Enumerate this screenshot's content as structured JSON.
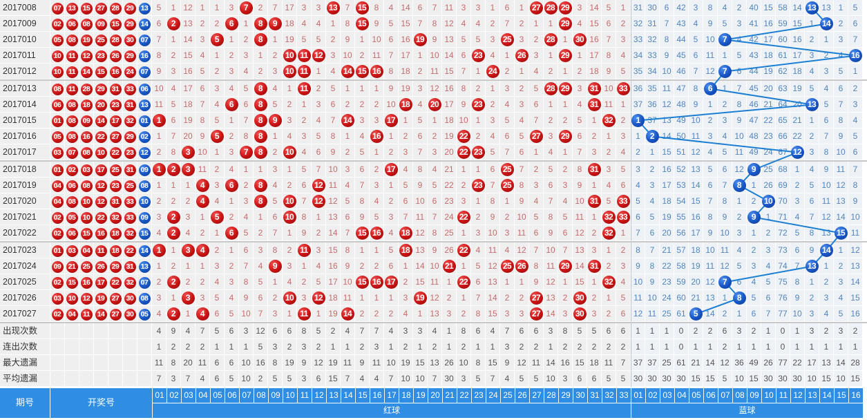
{
  "colors": {
    "red_ball": "#c81212",
    "blue_ball": "#1654c4",
    "header_bg": "#2f8de4",
    "line": "#1a7fd4",
    "red_text": "#c86a6a",
    "blue_text": "#4f86c2"
  },
  "header": {
    "period": "期号",
    "draw": "开奖号",
    "red_label": "红球",
    "blue_label": "蓝球",
    "red_cols": [
      "01",
      "02",
      "03",
      "04",
      "05",
      "06",
      "07",
      "08",
      "09",
      "10",
      "11",
      "12",
      "13",
      "14",
      "15",
      "16",
      "17",
      "18",
      "19",
      "20",
      "21",
      "22",
      "23",
      "24",
      "25",
      "26",
      "27",
      "28",
      "29",
      "30",
      "31",
      "32",
      "33"
    ],
    "blue_cols": [
      "01",
      "02",
      "03",
      "04",
      "05",
      "06",
      "07",
      "08",
      "09",
      "10",
      "11",
      "12",
      "13",
      "14",
      "15",
      "16"
    ]
  },
  "rows": [
    {
      "period": "2017008",
      "red": [
        "07",
        "13",
        "15",
        "27",
        "28",
        "29"
      ],
      "blue": "13",
      "red_cells": [
        5,
        1,
        12,
        1,
        1,
        3,
        7,
        2,
        7,
        17,
        3,
        3,
        13,
        7,
        15,
        8,
        4,
        14,
        6,
        7,
        11,
        3,
        3,
        1,
        6,
        1,
        27,
        28,
        29,
        3,
        14,
        5,
        1
      ],
      "blue_cells": [
        31,
        30,
        6,
        42,
        3,
        8,
        4,
        2,
        40,
        15,
        58,
        14,
        13,
        13,
        1,
        5
      ]
    },
    {
      "period": "2017009",
      "red": [
        "02",
        "06",
        "08",
        "09",
        "15",
        "29"
      ],
      "blue": "14",
      "red_cells": [
        6,
        2,
        13,
        2,
        2,
        6,
        1,
        8,
        9,
        18,
        4,
        4,
        1,
        8,
        15,
        9,
        5,
        15,
        7,
        8,
        12,
        4,
        4,
        2,
        7,
        2,
        1,
        1,
        29,
        4,
        15,
        6,
        2
      ],
      "blue_cells": [
        32,
        31,
        7,
        43,
        4,
        9,
        5,
        3,
        41,
        16,
        59,
        15,
        1,
        14,
        2,
        6
      ]
    },
    {
      "period": "2017010",
      "red": [
        "05",
        "08",
        "19",
        "25",
        "28",
        "30"
      ],
      "blue": "07",
      "red_cells": [
        7,
        1,
        14,
        3,
        5,
        1,
        2,
        8,
        1,
        19,
        5,
        5,
        2,
        9,
        1,
        10,
        6,
        16,
        19,
        9,
        13,
        5,
        5,
        3,
        25,
        3,
        2,
        28,
        1,
        30,
        16,
        7,
        3
      ],
      "blue_cells": [
        33,
        32,
        8,
        44,
        5,
        10,
        7,
        4,
        42,
        17,
        60,
        16,
        2,
        1,
        3,
        7
      ]
    },
    {
      "period": "2017011",
      "red": [
        "10",
        "11",
        "12",
        "23",
        "26",
        "29"
      ],
      "blue": "16",
      "red_cells": [
        8,
        2,
        15,
        4,
        1,
        2,
        3,
        1,
        2,
        10,
        11,
        12,
        3,
        10,
        2,
        11,
        7,
        17,
        1,
        10,
        14,
        6,
        23,
        4,
        1,
        26,
        3,
        1,
        29,
        1,
        17,
        8,
        4
      ],
      "blue_cells": [
        34,
        33,
        9,
        45,
        6,
        11,
        1,
        5,
        43,
        18,
        61,
        17,
        3,
        2,
        4,
        16
      ]
    },
    {
      "period": "2017012",
      "red": [
        "10",
        "11",
        "14",
        "15",
        "16",
        "24"
      ],
      "blue": "07",
      "red_cells": [
        9,
        3,
        16,
        5,
        2,
        3,
        4,
        2,
        3,
        10,
        11,
        1,
        4,
        14,
        15,
        16,
        8,
        18,
        2,
        11,
        15,
        7,
        1,
        24,
        2,
        1,
        4,
        2,
        1,
        2,
        18,
        9,
        5
      ],
      "blue_cells": [
        35,
        34,
        10,
        46,
        7,
        12,
        7,
        6,
        44,
        19,
        62,
        18,
        4,
        3,
        5,
        1
      ]
    },
    {
      "period": "2017013",
      "red": [
        "08",
        "11",
        "28",
        "29",
        "31",
        "33"
      ],
      "blue": "06",
      "red_cells": [
        10,
        4,
        17,
        6,
        3,
        4,
        5,
        8,
        4,
        1,
        11,
        2,
        5,
        1,
        1,
        1,
        9,
        19,
        3,
        12,
        16,
        8,
        2,
        1,
        3,
        2,
        5,
        28,
        29,
        3,
        31,
        10,
        33
      ],
      "blue_cells": [
        36,
        35,
        11,
        47,
        8,
        6,
        1,
        7,
        45,
        20,
        63,
        19,
        5,
        4,
        6,
        2
      ]
    },
    {
      "period": "2017014",
      "red": [
        "06",
        "08",
        "18",
        "20",
        "23",
        "31"
      ],
      "blue": "13",
      "red_cells": [
        11,
        5,
        18,
        7,
        4,
        6,
        6,
        8,
        5,
        2,
        1,
        3,
        6,
        2,
        2,
        2,
        10,
        18,
        4,
        20,
        17,
        9,
        23,
        2,
        4,
        3,
        6,
        1,
        1,
        4,
        31,
        11,
        1
      ],
      "blue_cells": [
        37,
        36,
        12,
        48,
        9,
        1,
        2,
        8,
        46,
        21,
        64,
        20,
        13,
        5,
        7,
        3
      ]
    },
    {
      "period": "2017015",
      "red": [
        "01",
        "08",
        "09",
        "14",
        "17",
        "32"
      ],
      "blue": "01",
      "red_cells": [
        1,
        6,
        19,
        8,
        5,
        1,
        7,
        8,
        9,
        3,
        2,
        4,
        7,
        14,
        3,
        3,
        17,
        1,
        5,
        1,
        18,
        10,
        1,
        3,
        5,
        4,
        7,
        2,
        2,
        5,
        1,
        32,
        2
      ],
      "blue_cells": [
        1,
        37,
        13,
        49,
        10,
        2,
        3,
        9,
        47,
        22,
        65,
        21,
        1,
        6,
        8,
        4
      ]
    },
    {
      "period": "2017016",
      "red": [
        "05",
        "08",
        "16",
        "22",
        "27",
        "29"
      ],
      "blue": "02",
      "red_cells": [
        1,
        7,
        20,
        9,
        5,
        2,
        8,
        8,
        1,
        4,
        3,
        5,
        8,
        1,
        4,
        16,
        1,
        2,
        6,
        2,
        19,
        22,
        2,
        4,
        6,
        5,
        27,
        3,
        29,
        6,
        2,
        1,
        3
      ],
      "blue_cells": [
        1,
        2,
        14,
        50,
        11,
        3,
        4,
        10,
        48,
        23,
        66,
        22,
        2,
        7,
        9,
        5
      ]
    },
    {
      "period": "2017017",
      "red": [
        "03",
        "07",
        "08",
        "10",
        "22",
        "23"
      ],
      "blue": "12",
      "red_cells": [
        2,
        8,
        3,
        10,
        1,
        3,
        7,
        8,
        2,
        10,
        4,
        6,
        9,
        2,
        5,
        1,
        2,
        3,
        7,
        3,
        20,
        22,
        23,
        5,
        7,
        6,
        1,
        4,
        1,
        7,
        3,
        2,
        4
      ],
      "blue_cells": [
        2,
        1,
        15,
        51,
        12,
        4,
        5,
        11,
        49,
        24,
        67,
        12,
        3,
        8,
        10,
        6
      ]
    },
    {
      "period": "2017018",
      "red": [
        "01",
        "02",
        "03",
        "17",
        "25",
        "31"
      ],
      "blue": "09",
      "red_cells": [
        1,
        2,
        3,
        11,
        2,
        4,
        1,
        1,
        3,
        1,
        5,
        7,
        10,
        3,
        6,
        2,
        17,
        4,
        8,
        4,
        21,
        1,
        1,
        6,
        25,
        7,
        2,
        5,
        2,
        8,
        31,
        3,
        5
      ],
      "blue_cells": [
        3,
        2,
        16,
        52,
        13,
        5,
        6,
        12,
        9,
        25,
        68,
        1,
        4,
        9,
        11,
        7
      ]
    },
    {
      "period": "2017019",
      "red": [
        "04",
        "06",
        "08",
        "12",
        "23",
        "25"
      ],
      "blue": "08",
      "red_cells": [
        1,
        1,
        1,
        4,
        3,
        6,
        2,
        8,
        4,
        2,
        6,
        12,
        11,
        4,
        7,
        3,
        1,
        5,
        9,
        5,
        22,
        2,
        23,
        7,
        25,
        8,
        3,
        6,
        3,
        9,
        1,
        4,
        6
      ],
      "blue_cells": [
        4,
        3,
        17,
        53,
        14,
        6,
        7,
        8,
        1,
        26,
        69,
        2,
        5,
        10,
        12,
        8
      ]
    },
    {
      "period": "2017020",
      "red": [
        "04",
        "08",
        "10",
        "12",
        "31",
        "33"
      ],
      "blue": "10",
      "red_cells": [
        2,
        2,
        2,
        4,
        4,
        1,
        3,
        8,
        5,
        10,
        7,
        12,
        12,
        5,
        8,
        4,
        2,
        6,
        10,
        6,
        23,
        3,
        1,
        8,
        1,
        9,
        4,
        7,
        4,
        10,
        31,
        5,
        33
      ],
      "blue_cells": [
        5,
        4,
        18,
        54,
        15,
        7,
        8,
        1,
        2,
        10,
        70,
        3,
        6,
        11,
        13,
        9
      ]
    },
    {
      "period": "2017021",
      "red": [
        "02",
        "05",
        "10",
        "22",
        "32",
        "33"
      ],
      "blue": "09",
      "red_cells": [
        3,
        2,
        3,
        1,
        5,
        2,
        4,
        1,
        6,
        10,
        8,
        1,
        13,
        6,
        9,
        5,
        3,
        7,
        11,
        7,
        24,
        22,
        2,
        9,
        2,
        10,
        5,
        8,
        5,
        11,
        1,
        32,
        33
      ],
      "blue_cells": [
        6,
        5,
        19,
        55,
        16,
        8,
        9,
        2,
        9,
        1,
        71,
        4,
        7,
        12,
        14,
        10
      ]
    },
    {
      "period": "2017022",
      "red": [
        "02",
        "06",
        "15",
        "16",
        "18",
        "32"
      ],
      "blue": "15",
      "red_cells": [
        4,
        2,
        4,
        2,
        1,
        6,
        5,
        2,
        7,
        1,
        9,
        2,
        14,
        7,
        15,
        16,
        4,
        18,
        12,
        8,
        25,
        1,
        3,
        10,
        3,
        11,
        6,
        9,
        6,
        12,
        2,
        32,
        1
      ],
      "blue_cells": [
        7,
        6,
        20,
        56,
        17,
        9,
        10,
        3,
        1,
        2,
        72,
        5,
        8,
        13,
        15,
        11
      ]
    },
    {
      "period": "2017023",
      "red": [
        "01",
        "03",
        "04",
        "11",
        "18",
        "22"
      ],
      "blue": "14",
      "red_cells": [
        1,
        1,
        3,
        4,
        2,
        1,
        6,
        3,
        8,
        2,
        11,
        3,
        15,
        8,
        1,
        1,
        5,
        18,
        13,
        9,
        26,
        22,
        4,
        11,
        4,
        12,
        7,
        10,
        7,
        13,
        3,
        1,
        2
      ],
      "blue_cells": [
        8,
        7,
        21,
        57,
        18,
        10,
        11,
        4,
        2,
        3,
        73,
        6,
        9,
        14,
        1,
        12
      ]
    },
    {
      "period": "2017024",
      "red": [
        "09",
        "21",
        "25",
        "26",
        "29",
        "31"
      ],
      "blue": "13",
      "red_cells": [
        1,
        2,
        1,
        1,
        3,
        2,
        7,
        4,
        9,
        3,
        1,
        4,
        16,
        9,
        2,
        2,
        6,
        1,
        14,
        10,
        21,
        1,
        5,
        12,
        25,
        26,
        8,
        11,
        29,
        14,
        31,
        2,
        3
      ],
      "blue_cells": [
        9,
        8,
        22,
        58,
        19,
        11,
        12,
        5,
        3,
        4,
        74,
        7,
        13,
        1,
        2,
        13
      ]
    },
    {
      "period": "2017025",
      "red": [
        "02",
        "15",
        "16",
        "17",
        "22",
        "32"
      ],
      "blue": "07",
      "red_cells": [
        2,
        2,
        2,
        2,
        4,
        3,
        8,
        5,
        1,
        4,
        2,
        5,
        17,
        10,
        15,
        16,
        17,
        2,
        15,
        11,
        1,
        22,
        6,
        13,
        1,
        1,
        9,
        12,
        1,
        15,
        1,
        32,
        4
      ],
      "blue_cells": [
        10,
        9,
        23,
        59,
        20,
        12,
        7,
        6,
        4,
        5,
        75,
        8,
        1,
        2,
        3,
        14
      ]
    },
    {
      "period": "2017026",
      "red": [
        "03",
        "10",
        "12",
        "19",
        "27",
        "30"
      ],
      "blue": "08",
      "red_cells": [
        3,
        1,
        3,
        3,
        5,
        4,
        9,
        6,
        2,
        10,
        3,
        12,
        18,
        11,
        1,
        1,
        1,
        3,
        19,
        12,
        2,
        1,
        7,
        14,
        2,
        2,
        27,
        13,
        2,
        30,
        2,
        1,
        5
      ],
      "blue_cells": [
        11,
        10,
        24,
        60,
        21,
        13,
        1,
        8,
        5,
        6,
        76,
        9,
        2,
        3,
        4,
        15
      ]
    },
    {
      "period": "2017027",
      "red": [
        "02",
        "04",
        "11",
        "14",
        "27",
        "30"
      ],
      "blue": "05",
      "red_cells": [
        4,
        2,
        1,
        4,
        6,
        5,
        10,
        7,
        3,
        1,
        11,
        1,
        19,
        14,
        2,
        2,
        2,
        4,
        1,
        13,
        3,
        2,
        8,
        15,
        3,
        3,
        27,
        14,
        3,
        30,
        3,
        2,
        6
      ],
      "blue_cells": [
        12,
        11,
        25,
        61,
        5,
        14,
        2,
        1,
        6,
        7,
        77,
        10,
        3,
        4,
        5,
        16
      ]
    }
  ],
  "stats": [
    {
      "label": "出现次数",
      "red": [
        4,
        9,
        4,
        7,
        5,
        6,
        3,
        12,
        6,
        6,
        8,
        5,
        2,
        4,
        7,
        7,
        4,
        3,
        3,
        4,
        1,
        8,
        6,
        4,
        7,
        6,
        6,
        3,
        8,
        5,
        5,
        6,
        6
      ],
      "blue": [
        1,
        1,
        1,
        0,
        2,
        2,
        6,
        3,
        2,
        1,
        0,
        1,
        3,
        2,
        3,
        2
      ]
    },
    {
      "label": "连出次数",
      "red": [
        1,
        2,
        2,
        2,
        1,
        1,
        1,
        5,
        3,
        2,
        3,
        2,
        1,
        1,
        2,
        3,
        1,
        2,
        1,
        2,
        1,
        2,
        1,
        1,
        3,
        2,
        2,
        1,
        2,
        2,
        2,
        2,
        2
      ],
      "blue": [
        1,
        1,
        1,
        0,
        1,
        1,
        2,
        1,
        1,
        1,
        0,
        1,
        1,
        1,
        1,
        1
      ]
    },
    {
      "label": "最大遗漏",
      "red": [
        11,
        8,
        20,
        11,
        6,
        6,
        10,
        16,
        8,
        19,
        9,
        12,
        19,
        11,
        9,
        11,
        10,
        19,
        15,
        13,
        26,
        10,
        8,
        15,
        9,
        12,
        11,
        14,
        16,
        15,
        18,
        11,
        7
      ],
      "blue": [
        37,
        37,
        25,
        61,
        21,
        14,
        12,
        36,
        49,
        26,
        77,
        22,
        17,
        13,
        14,
        28
      ]
    },
    {
      "label": "平均遗漏",
      "red": [
        7,
        3,
        7,
        4,
        6,
        5,
        10,
        2,
        5,
        5,
        3,
        6,
        15,
        7,
        4,
        4,
        7,
        10,
        10,
        7,
        30,
        3,
        5,
        7,
        4,
        5,
        5,
        10,
        3,
        6,
        6,
        5,
        5
      ],
      "blue": [
        30,
        30,
        30,
        30,
        15,
        15,
        5,
        10,
        15,
        30,
        30,
        30,
        10,
        15,
        10,
        15
      ]
    }
  ]
}
